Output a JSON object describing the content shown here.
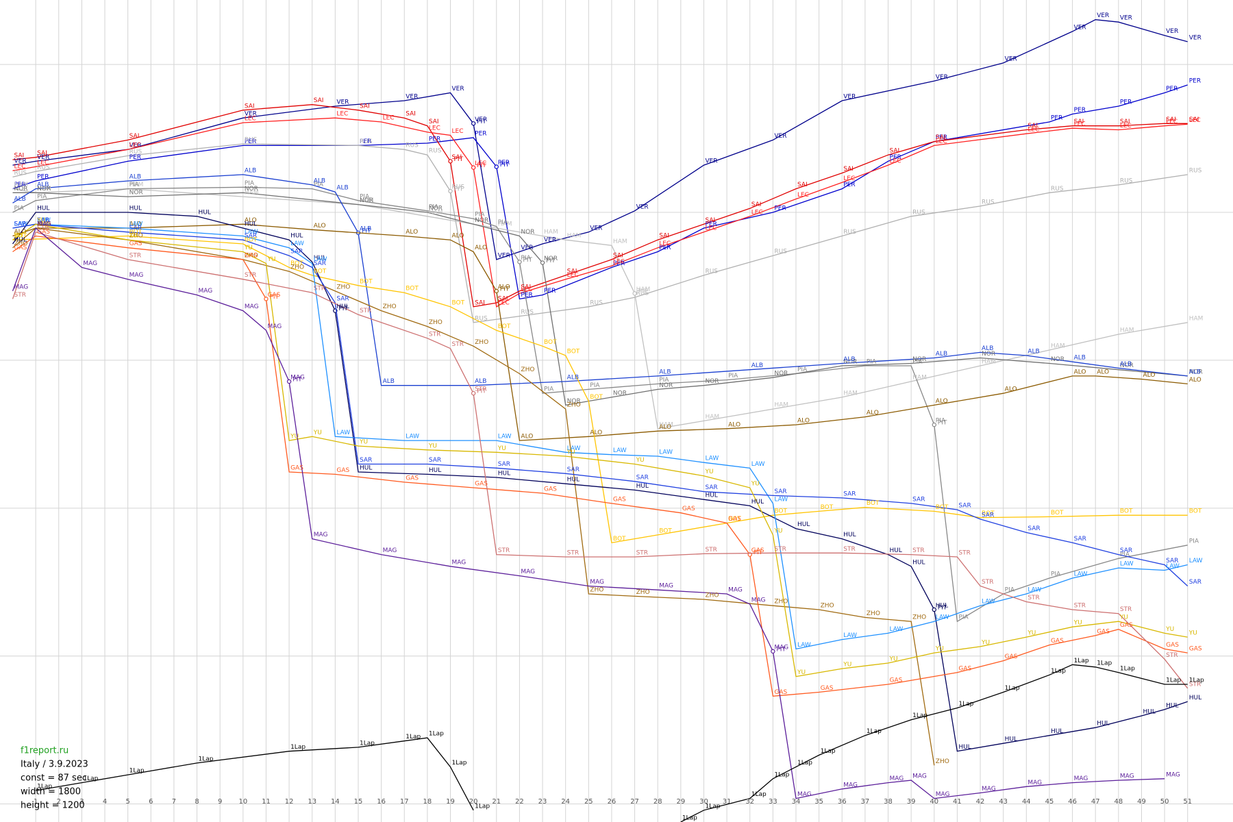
{
  "chart_data": {
    "type": "line",
    "xlim": [
      -0.55,
      52.97
    ],
    "ylim": [
      1045,
      0
    ],
    "xticks": [
      1,
      2,
      3,
      4,
      5,
      6,
      7,
      8,
      9,
      10,
      11,
      12,
      13,
      14,
      15,
      16,
      17,
      18,
      19,
      20,
      21,
      22,
      23,
      24,
      25,
      26,
      27,
      28,
      29,
      30,
      31,
      32,
      33,
      34,
      35,
      36,
      37,
      38,
      39,
      40,
      41,
      42,
      43,
      44,
      45,
      46,
      47,
      48,
      49,
      50,
      51
    ],
    "yticks": [
      82,
      270,
      458,
      646,
      834,
      1022
    ],
    "grid": true,
    "pit_text": "PIT",
    "annotations": [
      {
        "text": "f1report.ru",
        "color": "#20a020"
      },
      {
        "text": "Italy / 3.9.2023",
        "color": "#000000"
      },
      {
        "text": "const = 87 sec",
        "color": "#000000"
      },
      {
        "text": "width = 1800",
        "color": "#000000"
      },
      {
        "text": "height = 1200",
        "color": "#000000"
      }
    ],
    "series": [
      {
        "name": "VER",
        "color": "#00008b",
        "pit_laps": [
          20
        ],
        "x": [
          0,
          1,
          5,
          10,
          14,
          17,
          19,
          20,
          21,
          22,
          23,
          25,
          27,
          30,
          33,
          36,
          40,
          43,
          46,
          47,
          48,
          50,
          51
        ],
        "values": [
          210,
          205,
          190,
          150,
          135,
          128,
          118,
          157,
          330,
          320,
          310,
          295,
          268,
          210,
          178,
          128,
          103,
          80,
          40,
          25,
          28,
          45,
          53
        ]
      },
      {
        "name": "PER",
        "color": "#0000cd",
        "pit_laps": [
          21
        ],
        "x": [
          0,
          1,
          5,
          10,
          15,
          18,
          20,
          21,
          22,
          23,
          26,
          28,
          30,
          33,
          36,
          38,
          40,
          45,
          46,
          48,
          50,
          51
        ],
        "values": [
          240,
          230,
          205,
          185,
          185,
          182,
          175,
          212,
          380,
          375,
          340,
          320,
          290,
          270,
          240,
          205,
          180,
          155,
          145,
          135,
          118,
          108
        ]
      },
      {
        "name": "SAI",
        "color": "#e00000",
        "pit_laps": [
          19
        ],
        "x": [
          0,
          1,
          5,
          10,
          13,
          15,
          17,
          18,
          19,
          20,
          21,
          22,
          24,
          26,
          28,
          30,
          32,
          34,
          36,
          38,
          40,
          44,
          46,
          48,
          50,
          51
        ],
        "values": [
          203,
          200,
          178,
          140,
          133,
          140,
          150,
          160,
          205,
          390,
          385,
          370,
          350,
          330,
          305,
          285,
          265,
          240,
          220,
          197,
          180,
          165,
          160,
          160,
          157,
          157
        ]
      },
      {
        "name": "LEC",
        "color": "#ff2020",
        "pit_laps": [
          20
        ],
        "x": [
          0,
          1,
          5,
          10,
          14,
          16,
          18,
          19,
          20,
          21,
          22,
          24,
          26,
          28,
          30,
          32,
          34,
          36,
          38,
          40,
          44,
          46,
          48,
          50,
          51
        ],
        "values": [
          217,
          212,
          190,
          156,
          150,
          155,
          168,
          172,
          213,
          390,
          373,
          355,
          338,
          315,
          295,
          275,
          253,
          232,
          210,
          185,
          170,
          163,
          165,
          160,
          158
        ]
      },
      {
        "name": "RUS",
        "color": "#b0b0b0",
        "pit_laps": [
          19
        ],
        "x": [
          0,
          1,
          5,
          10,
          15,
          17,
          18,
          19,
          20,
          22,
          25,
          27,
          30,
          33,
          36,
          39,
          42,
          45,
          48,
          51
        ],
        "values": [
          225,
          218,
          198,
          183,
          185,
          190,
          197,
          243,
          410,
          402,
          390,
          378,
          350,
          325,
          300,
          275,
          262,
          245,
          235,
          222
        ]
      },
      {
        "name": "HAM",
        "color": "#c0c0c0",
        "pit_laps": [
          27
        ],
        "x": [
          0,
          1,
          5,
          10,
          15,
          18,
          21,
          23,
          24,
          26,
          27,
          28,
          30,
          33,
          36,
          39,
          42,
          45,
          48,
          51
        ],
        "values": [
          240,
          245,
          240,
          250,
          260,
          275,
          290,
          300,
          305,
          312,
          373,
          545,
          535,
          520,
          505,
          485,
          465,
          445,
          425,
          410
        ]
      },
      {
        "name": "PIA",
        "color": "#888888",
        "pit_laps": [
          22,
          40
        ],
        "x": [
          0,
          1,
          5,
          10,
          13,
          15,
          18,
          20,
          21,
          22,
          23,
          25,
          28,
          31,
          34,
          37,
          39,
          40,
          41,
          43,
          45,
          48,
          51
        ],
        "values": [
          270,
          255,
          240,
          238,
          240,
          255,
          268,
          278,
          288,
          333,
          500,
          495,
          488,
          483,
          475,
          465,
          465,
          540,
          790,
          755,
          735,
          710,
          693
        ]
      },
      {
        "name": "NOR",
        "color": "#707070",
        "pit_laps": [
          23
        ],
        "x": [
          0,
          1,
          5,
          10,
          15,
          18,
          20,
          22,
          23,
          24,
          26,
          28,
          30,
          33,
          36,
          39,
          42,
          45,
          48,
          51
        ],
        "values": [
          245,
          245,
          250,
          245,
          260,
          270,
          285,
          300,
          334,
          515,
          505,
          495,
          490,
          480,
          465,
          462,
          455,
          462,
          470,
          478
        ]
      },
      {
        "name": "ALB",
        "color": "#1a3fd0",
        "pit_laps": [
          15
        ],
        "x": [
          0,
          1,
          5,
          10,
          13,
          14,
          15,
          16,
          20,
          24,
          28,
          32,
          36,
          40,
          42,
          44,
          46,
          48,
          51
        ],
        "values": [
          258,
          240,
          230,
          222,
          235,
          244,
          296,
          490,
          490,
          485,
          478,
          470,
          462,
          455,
          448,
          452,
          460,
          468,
          478
        ]
      },
      {
        "name": "ALO",
        "color": "#8b5a00",
        "pit_laps": [
          21
        ],
        "x": [
          0,
          1,
          5,
          10,
          13,
          17,
          19,
          20,
          21,
          22,
          25,
          28,
          31,
          34,
          37,
          40,
          43,
          46,
          47,
          49,
          51
        ],
        "values": [
          300,
          290,
          290,
          285,
          292,
          300,
          305,
          320,
          370,
          560,
          555,
          548,
          545,
          540,
          530,
          515,
          500,
          478,
          478,
          482,
          488
        ]
      },
      {
        "name": "BOT",
        "color": "#ffc400",
        "pit_laps": [],
        "x": [
          0,
          5,
          10,
          12,
          13,
          15,
          17,
          19,
          21,
          23,
          24,
          25,
          26,
          28,
          31,
          33,
          35,
          37,
          40,
          42,
          45,
          48,
          51
        ],
        "values": [
          305,
          300,
          310,
          340,
          350,
          363,
          372,
          390,
          420,
          440,
          452,
          510,
          690,
          680,
          665,
          655,
          650,
          645,
          650,
          658,
          657,
          655,
          655
        ]
      },
      {
        "name": "ZHO",
        "color": "#a06a10",
        "pit_laps": [],
        "x": [
          0,
          1,
          5,
          10,
          12,
          14,
          16,
          18,
          20,
          22,
          24,
          25,
          27,
          30,
          33,
          35,
          37,
          39,
          40
        ],
        "values": [
          315,
          290,
          305,
          330,
          345,
          370,
          395,
          415,
          440,
          475,
          520,
          755,
          758,
          762,
          770,
          775,
          785,
          790,
          973
        ]
      },
      {
        "name": "HUL",
        "color": "#00005a",
        "pit_laps": [
          14,
          40
        ],
        "x": [
          0,
          1,
          5,
          8,
          10,
          12,
          13,
          14,
          15,
          18,
          21,
          24,
          27,
          30,
          32,
          34,
          36,
          38,
          39,
          40,
          41,
          43,
          45,
          47,
          49,
          50,
          51
        ],
        "values": [
          310,
          270,
          270,
          275,
          290,
          305,
          333,
          395,
          600,
          603,
          607,
          615,
          623,
          635,
          643,
          672,
          685,
          705,
          720,
          775,
          955,
          945,
          935,
          925,
          910,
          902,
          892
        ]
      },
      {
        "name": "LAW",
        "color": "#1e90ff",
        "pit_laps": [],
        "x": [
          0,
          1,
          5,
          10,
          12,
          13,
          14,
          17,
          21,
          24,
          26,
          28,
          30,
          32,
          33,
          34,
          36,
          38,
          40,
          42,
          44,
          46,
          48,
          50,
          51
        ],
        "values": [
          290,
          285,
          290,
          300,
          315,
          335,
          555,
          560,
          560,
          575,
          578,
          580,
          588,
          595,
          640,
          825,
          813,
          805,
          790,
          770,
          755,
          735,
          722,
          725,
          718
        ]
      },
      {
        "name": "SAR",
        "color": "#2040e0",
        "pit_laps": [],
        "x": [
          0,
          1,
          5,
          10,
          12,
          13,
          14,
          15,
          18,
          21,
          24,
          27,
          30,
          33,
          36,
          39,
          41,
          42,
          44,
          46,
          48,
          50,
          51
        ],
        "values": [
          290,
          285,
          295,
          305,
          325,
          340,
          385,
          590,
          590,
          595,
          602,
          612,
          625,
          630,
          633,
          640,
          648,
          660,
          677,
          690,
          705,
          718,
          745
        ]
      },
      {
        "name": "YU",
        "color": "#d8b800",
        "pit_laps": [],
        "x": [
          0,
          1,
          5,
          10,
          11,
          12,
          13,
          15,
          18,
          21,
          24,
          27,
          30,
          32,
          33,
          34,
          36,
          38,
          40,
          42,
          44,
          46,
          48,
          50,
          51
        ],
        "values": [
          305,
          285,
          305,
          320,
          335,
          560,
          555,
          567,
          572,
          575,
          580,
          590,
          605,
          620,
          680,
          860,
          850,
          843,
          830,
          822,
          810,
          797,
          790,
          805,
          810
        ]
      },
      {
        "name": "GAS",
        "color": "#ff5a1f",
        "pit_laps": [
          11,
          32
        ],
        "x": [
          0,
          1,
          5,
          10,
          11,
          12,
          14,
          17,
          20,
          23,
          26,
          29,
          31,
          32,
          33,
          35,
          38,
          41,
          43,
          45,
          47,
          48,
          50,
          51
        ],
        "values": [
          320,
          300,
          315,
          330,
          380,
          600,
          603,
          613,
          620,
          627,
          640,
          652,
          665,
          705,
          885,
          880,
          870,
          855,
          840,
          820,
          808,
          800,
          825,
          830
        ]
      },
      {
        "name": "STR",
        "color": "#cd7070",
        "pit_laps": [
          20
        ],
        "x": [
          0,
          1,
          5,
          10,
          13,
          15,
          18,
          19,
          20,
          21,
          24,
          27,
          30,
          33,
          36,
          39,
          41,
          42,
          44,
          46,
          48,
          50,
          51
        ],
        "values": [
          380,
          295,
          330,
          355,
          372,
          400,
          430,
          443,
          500,
          705,
          708,
          708,
          704,
          703,
          703,
          705,
          708,
          745,
          765,
          775,
          780,
          838,
          875
        ]
      },
      {
        "name": "MAG",
        "color": "#5b1e9a",
        "pit_laps": [
          12,
          33
        ],
        "x": [
          0,
          1,
          3,
          5,
          8,
          10,
          11,
          12,
          13,
          16,
          19,
          22,
          25,
          28,
          31,
          32,
          33,
          34,
          36,
          38,
          39,
          40,
          42,
          44,
          46,
          48,
          50
        ],
        "values": [
          370,
          290,
          340,
          355,
          375,
          395,
          420,
          485,
          685,
          705,
          720,
          732,
          745,
          750,
          755,
          768,
          828,
          1015,
          1003,
          995,
          992,
          1015,
          1008,
          1000,
          995,
          992,
          990
        ]
      },
      {
        "name": "1Lap",
        "color": "#000000",
        "pit_laps": [],
        "x": [
          1,
          3,
          5,
          8,
          12,
          15,
          17,
          18,
          19,
          20,
          21,
          29,
          30,
          32,
          33,
          34,
          35,
          37,
          39,
          41,
          43,
          45,
          46,
          47,
          48,
          50,
          51
        ],
        "values": [
          1005,
          995,
          985,
          970,
          955,
          950,
          942,
          938,
          975,
          1030,
          null,
          1045,
          1030,
          1015,
          990,
          975,
          960,
          935,
          915,
          900,
          880,
          858,
          845,
          848,
          855,
          870,
          870
        ]
      }
    ]
  }
}
